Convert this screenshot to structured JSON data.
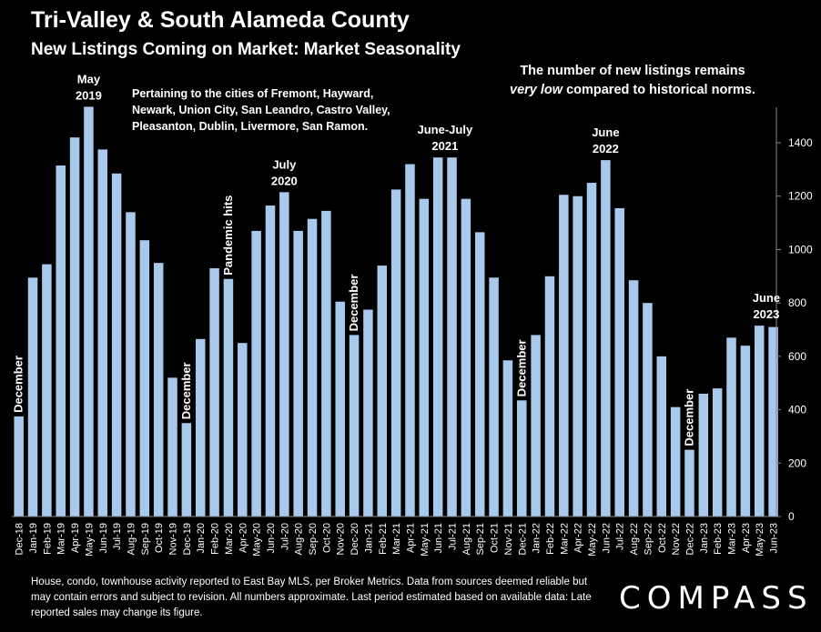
{
  "header": {
    "title": "Tri-Valley & South Alameda County",
    "subtitle": "New Listings Coming on Market: Market Seasonality"
  },
  "note": "Pertaining to the cities of Fremont, Hayward, Newark, Union City, San Leandro, Castro Valley, Pleasanton, Dublin, Livermore, San Ramon.",
  "callout": {
    "line1": "The number of new listings remains",
    "emph": "very low",
    "line2_rest": " compared to historical norms."
  },
  "footer": "House, condo, townhouse activity reported to East Bay MLS, per Broker Metrics. Data from sources deemed reliable but may contain errors and subject to revision. All numbers approximate. Last period estimated based on available data: Late reported sales may change its figure.",
  "logo": "COMPASS",
  "colors": {
    "bar": "#a9c9ec",
    "background": "#000000",
    "text": "#ffffff"
  },
  "chart_data": {
    "type": "bar",
    "categories": [
      "Dec-18",
      "Jan-19",
      "Feb-19",
      "Mar-19",
      "Apr-19",
      "May-19",
      "Jun-19",
      "Jul-19",
      "Aug-19",
      "Sep-19",
      "Oct-19",
      "Nov-19",
      "Dec-19",
      "Jan-20",
      "Feb-20",
      "Mar-20",
      "Apr-20",
      "May-20",
      "Jun-20",
      "Jul-20",
      "Aug-20",
      "Sep-20",
      "Oct-20",
      "Nov-20",
      "Dec-20",
      "Jan-21",
      "Feb-21",
      "Mar-21",
      "Apr-21",
      "May-21",
      "Jun-21",
      "Jul-21",
      "Aug-21",
      "Sep-21",
      "Oct-21",
      "Nov-21",
      "Dec-21",
      "Jan-22",
      "Feb-22",
      "Mar-22",
      "Apr-22",
      "May-22",
      "Jun-22",
      "Jul-22",
      "Aug-22",
      "Sep-22",
      "Oct-22",
      "Nov-22",
      "Dec-22",
      "Jan-23",
      "Feb-23",
      "Mar-23",
      "Apr-23",
      "May-23",
      "Jun-23"
    ],
    "values": [
      375,
      895,
      945,
      1315,
      1420,
      1535,
      1375,
      1285,
      1140,
      1035,
      950,
      520,
      350,
      665,
      930,
      890,
      650,
      1070,
      1165,
      1215,
      1070,
      1115,
      1145,
      805,
      680,
      775,
      940,
      1225,
      1320,
      1190,
      1345,
      1345,
      1190,
      1065,
      895,
      585,
      435,
      680,
      900,
      1205,
      1200,
      1250,
      1335,
      1155,
      885,
      800,
      600,
      410,
      250,
      460,
      480,
      670,
      640,
      715,
      710
    ],
    "ylim": [
      0,
      1550
    ],
    "yticks": [
      0,
      200,
      400,
      600,
      800,
      1000,
      1200,
      1400
    ],
    "y_axis_side": "right",
    "annotations": [
      {
        "text": "December",
        "category": "Dec-18",
        "orientation": "vertical"
      },
      {
        "text": "May 2019",
        "line1": "May",
        "line2": "2019",
        "category": "May-19",
        "orientation": "horizontal"
      },
      {
        "text": "December",
        "category": "Dec-19",
        "orientation": "vertical"
      },
      {
        "text": "Pandemic hits",
        "category": "Mar-20",
        "orientation": "vertical"
      },
      {
        "text": "July 2020",
        "line1": "July",
        "line2": "2020",
        "category": "Jul-20",
        "orientation": "horizontal"
      },
      {
        "text": "December",
        "category": "Dec-20",
        "orientation": "vertical"
      },
      {
        "text": "June-July 2021",
        "line1": "June-July",
        "line2": "2021",
        "category": "Jun-21",
        "orientation": "horizontal",
        "span": 2
      },
      {
        "text": "December",
        "category": "Dec-21",
        "orientation": "vertical"
      },
      {
        "text": "June 2022",
        "line1": "June",
        "line2": "2022",
        "category": "Jun-22",
        "orientation": "horizontal"
      },
      {
        "text": "December",
        "category": "Dec-22",
        "orientation": "vertical"
      },
      {
        "text": "June 2023",
        "line1": "June",
        "line2": "2023",
        "category": "Jun-23",
        "orientation": "horizontal",
        "span_prev": true
      }
    ]
  }
}
